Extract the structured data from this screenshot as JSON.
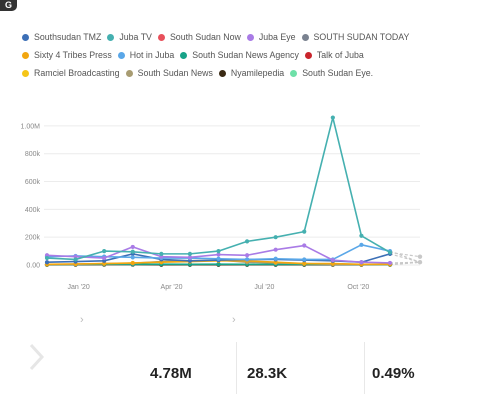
{
  "app": {
    "logo_text": "G"
  },
  "legend": {
    "rows": [
      [
        {
          "name": "Southsudan TMZ",
          "color": "#3c6fb6"
        },
        {
          "name": "Juba TV",
          "color": "#45b0b0"
        },
        {
          "name": "South Sudan Now",
          "color": "#e8505b"
        },
        {
          "name": "Juba Eye",
          "color": "#a97be6"
        },
        {
          "name": "SOUTH SUDAN TODAY",
          "color": "#7a8290"
        }
      ],
      [
        {
          "name": "Sixty 4 Tribes Press",
          "color": "#f2a60f"
        },
        {
          "name": "Hot in Juba",
          "color": "#5aa7e8"
        },
        {
          "name": "South Sudan News Agency",
          "color": "#17a388"
        },
        {
          "name": "Talk of Juba",
          "color": "#c9252c"
        }
      ],
      [
        {
          "name": "Ramciel Broadcasting",
          "color": "#f5c518"
        },
        {
          "name": "South Sudan News",
          "color": "#a89c72"
        },
        {
          "name": "Nyamilepedia",
          "color": "#3a2a14"
        },
        {
          "name": "South Sudan Eye.",
          "color": "#6ee0a8"
        }
      ]
    ]
  },
  "chart_data": {
    "type": "line",
    "x": [
      "2019-12-01",
      "2019-12-29",
      "2020-01-26",
      "2020-02-23",
      "2020-03-22",
      "2020-04-19",
      "2020-05-17",
      "2020-06-14",
      "2020-07-12",
      "2020-08-09",
      "2020-09-06",
      "2020-10-04",
      "2020-11-01"
    ],
    "x_tick_labels": [
      "Jan '20",
      "Apr '20",
      "Jul '20",
      "Oct '20"
    ],
    "x_tick_dates": [
      "2020-01-01",
      "2020-04-01",
      "2020-07-01",
      "2020-10-01"
    ],
    "y_tick_labels": [
      "0.00",
      "200k",
      "400k",
      "600k",
      "800k",
      "1.00M"
    ],
    "y_tick_values": [
      0,
      200000,
      400000,
      600000,
      800000,
      1000000
    ],
    "ylim": [
      0,
      1100000
    ],
    "series": [
      {
        "name": "Juba TV",
        "color": "#45b0b0",
        "values": [
          50000,
          40000,
          100000,
          95000,
          80000,
          80000,
          100000,
          170000,
          200000,
          240000,
          1060000,
          210000,
          90000
        ]
      },
      {
        "name": "Juba Eye",
        "color": "#a97be6",
        "values": [
          70000,
          60000,
          50000,
          130000,
          60000,
          55000,
          75000,
          70000,
          110000,
          140000,
          35000,
          20000,
          15000
        ]
      },
      {
        "name": "Hot in Juba",
        "color": "#5aa7e8",
        "values": [
          60000,
          65000,
          60000,
          55000,
          50000,
          50000,
          45000,
          40000,
          45000,
          40000,
          40000,
          145000,
          100000
        ]
      },
      {
        "name": "Southsudan TMZ",
        "color": "#3c6fb6",
        "values": [
          20000,
          25000,
          30000,
          80000,
          40000,
          30000,
          35000,
          40000,
          40000,
          35000,
          30000,
          20000,
          80000
        ]
      },
      {
        "name": "Sixty 4 Tribes Press",
        "color": "#f2a60f",
        "values": [
          5000,
          8000,
          10000,
          15000,
          20000,
          25000,
          30000,
          30000,
          20000,
          10000,
          10000,
          5000,
          5000
        ]
      },
      {
        "name": "South Sudan News",
        "color": "#a89c72",
        "values": [
          3000,
          5000,
          10000,
          12000,
          25000,
          30000,
          35000,
          20000,
          15000,
          10000,
          5000,
          5000,
          5000
        ]
      },
      {
        "name": "South Sudan News Agency",
        "color": "#17a388",
        "values": [
          2000,
          4000,
          6000,
          5000,
          6000,
          5000,
          6000,
          5000,
          5000,
          5000,
          5000,
          4000,
          3000
        ]
      },
      {
        "name": "Nyamilepedia",
        "color": "#3a2a14",
        "values": [
          1000,
          2000,
          3000,
          3000,
          2000,
          2000,
          2000,
          2000,
          2000,
          2000,
          2000,
          2000,
          2000
        ]
      }
    ],
    "projection": {
      "color": "#c8c8c8",
      "values": [
        60000,
        20000
      ]
    }
  },
  "kpis": [
    {
      "value": "4.78M"
    },
    {
      "value": "28.3K"
    },
    {
      "value": "0.49%"
    }
  ]
}
